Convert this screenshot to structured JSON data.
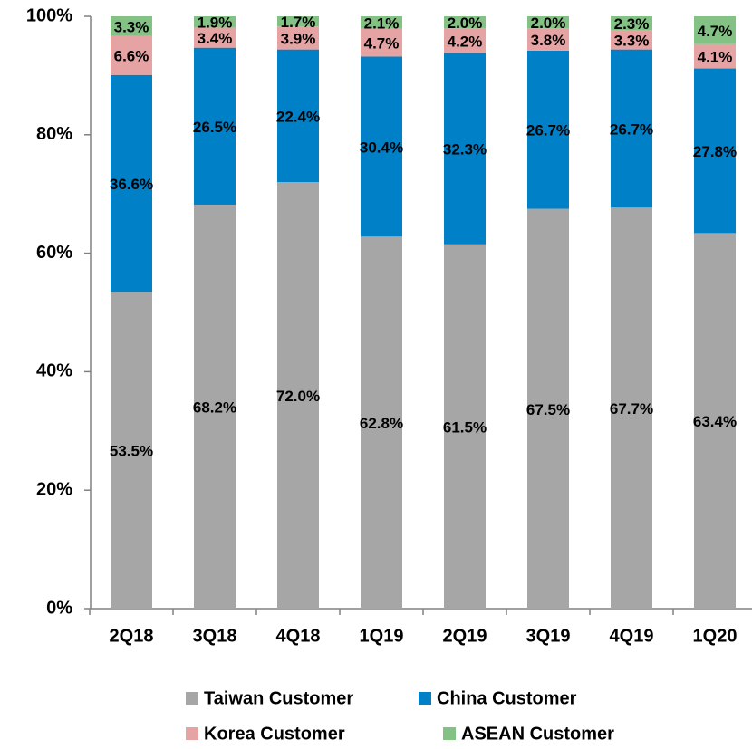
{
  "chart_data": {
    "type": "bar",
    "stacked": true,
    "categories": [
      "2Q18",
      "3Q18",
      "4Q18",
      "1Q19",
      "2Q19",
      "3Q19",
      "4Q19",
      "1Q20"
    ],
    "series": [
      {
        "name": "Taiwan Customer",
        "color": "#a6a6a6",
        "values": [
          53.5,
          68.2,
          72.0,
          62.8,
          61.5,
          67.5,
          67.7,
          63.4
        ],
        "value_labels": [
          "53.5%",
          "68.2%",
          "72.0%",
          "62.8%",
          "61.5%",
          "67.5%",
          "67.7%",
          "63.4%"
        ]
      },
      {
        "name": "China Customer",
        "color": "#0080c6",
        "values": [
          36.6,
          26.5,
          22.4,
          30.4,
          32.3,
          26.7,
          26.7,
          27.8
        ],
        "value_labels": [
          "36.6%",
          "26.5%",
          "22.4%",
          "30.4%",
          "32.3%",
          "26.7%",
          "26.7%",
          "27.8%"
        ]
      },
      {
        "name": "Korea Customer",
        "color": "#e6a3a3",
        "values": [
          6.6,
          3.4,
          3.9,
          4.7,
          4.2,
          3.8,
          3.3,
          4.1
        ],
        "value_labels": [
          "6.6%",
          "3.4%",
          "3.9%",
          "4.7%",
          "4.2%",
          "3.8%",
          "3.3%",
          "4.1%"
        ]
      },
      {
        "name": "ASEAN Customer",
        "color": "#84c184",
        "values": [
          3.3,
          1.9,
          1.7,
          2.1,
          2.0,
          2.0,
          2.3,
          4.7
        ],
        "value_labels": [
          "3.3%",
          "1.9%",
          "1.7%",
          "2.1%",
          "2.0%",
          "2.0%",
          "2.3%",
          "4.7%"
        ]
      }
    ],
    "ylim": [
      0,
      100
    ],
    "yticks": [
      {
        "value": 0,
        "label": "0%"
      },
      {
        "value": 20,
        "label": "20%"
      },
      {
        "value": 40,
        "label": "40%"
      },
      {
        "value": 60,
        "label": "60%"
      },
      {
        "value": 80,
        "label": "80%"
      },
      {
        "value": 100,
        "label": "100%"
      }
    ],
    "legend": "bottom"
  }
}
